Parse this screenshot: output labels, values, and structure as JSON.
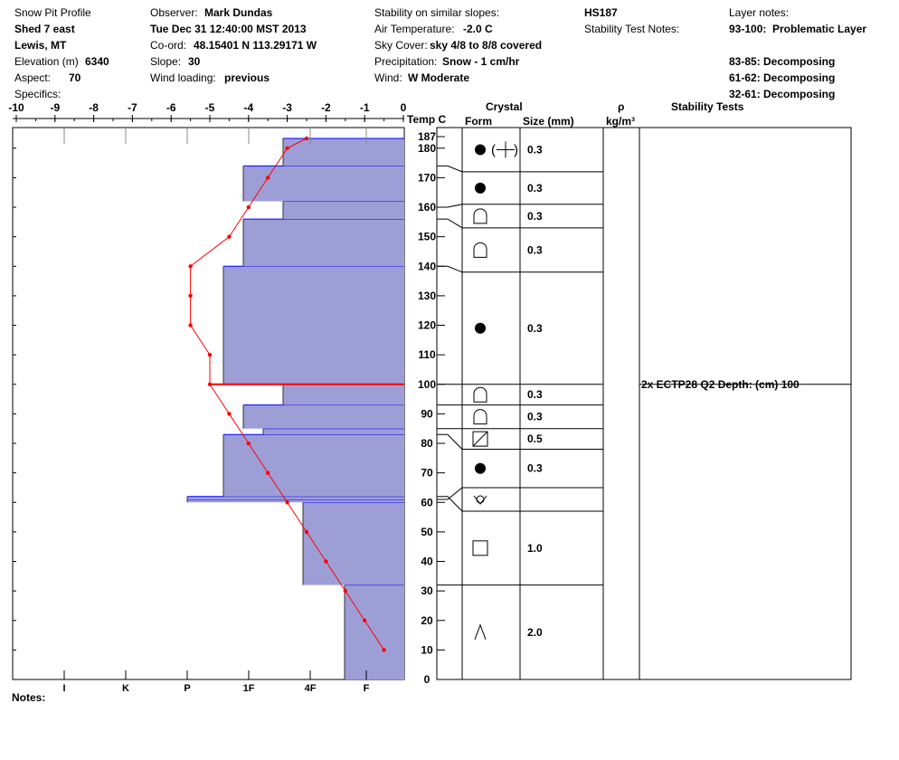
{
  "header": {
    "title": "Snow Pit Profile",
    "pit_name": "Shed 7 east",
    "location": "Lewis, MT",
    "elevation_label": "Elevation (m)",
    "elevation_value": "6340",
    "aspect_label": "Aspect:",
    "aspect_value": "70",
    "specifics_label": "Specifics:",
    "observer_label": "Observer:",
    "observer_value": "Mark Dundas",
    "datetime": "Tue Dec 31 12:40:00 MST 2013",
    "coord_label": "Co-ord:",
    "coord_value": "48.15401 N 113.29171 W",
    "slope_label": "Slope:",
    "slope_value": "30",
    "wind_loading_label": "Wind loading:",
    "wind_loading_value": "previous",
    "stability_similar_label": "Stability on similar slopes:",
    "air_temp_label": "Air Temperature:",
    "air_temp_value": "-2.0 C",
    "sky_cover_label": "Sky Cover:",
    "sky_cover_value": "sky 4/8 to 8/8 covered",
    "precip_label": "Precipitation:",
    "precip_value": "Snow - 1 cm/hr",
    "wind_label": "Wind:",
    "wind_value": "W Moderate",
    "hs": "HS187",
    "stability_notes_label": "Stability Test Notes:",
    "layer_notes_label": "Layer notes:",
    "layer_notes": [
      {
        "range": "93-100:",
        "text": "Problematic Layer"
      },
      {
        "range": "83-85:",
        "text": "Decomposing"
      },
      {
        "range": "61-62:",
        "text": "Decomposing"
      },
      {
        "range": "32-61:",
        "text": "Decomposing"
      }
    ],
    "notes_label": "Notes:"
  },
  "columns": {
    "temp": "Temp C",
    "crystal": "Crystal",
    "form": "Form",
    "size": "Size (mm)",
    "rho": "ρ",
    "density_unit": "kg/m³",
    "stability_tests": "Stability Tests"
  },
  "chart_data": {
    "type": "snow_profile",
    "snow_height_cm": 187,
    "height_axis": {
      "min": 0,
      "max": 187,
      "ticks": [
        0,
        10,
        20,
        30,
        40,
        50,
        60,
        70,
        80,
        90,
        100,
        110,
        120,
        130,
        140,
        150,
        160,
        170,
        180,
        187
      ]
    },
    "temp_axis": {
      "min": -10,
      "max": 0,
      "ticks": [
        -10,
        -9,
        -8,
        -7,
        -6,
        -5,
        -4,
        -3,
        -2,
        -1,
        0
      ]
    },
    "hardness_axis": {
      "labels": [
        "I",
        "K",
        "P",
        "1F",
        "4F",
        "F"
      ],
      "values": [
        9.4,
        7.7,
        6.0,
        4.3,
        2.6,
        1.05
      ]
    },
    "hardness_layers": [
      {
        "bottom": 0,
        "top": 32,
        "hardness": 1.65
      },
      {
        "bottom": 32,
        "top": 60,
        "hardness": 2.8
      },
      {
        "bottom": 60,
        "top": 61,
        "hardness": 6.0
      },
      {
        "bottom": 61,
        "top": 62,
        "hardness": 6.0
      },
      {
        "bottom": 62,
        "top": 83,
        "hardness": 5.0
      },
      {
        "bottom": 83,
        "top": 85,
        "hardness": 3.9
      },
      {
        "bottom": 85,
        "top": 93,
        "hardness": 4.45
      },
      {
        "bottom": 93,
        "top": 100,
        "hardness": 3.35
      },
      {
        "bottom": 100,
        "top": 140,
        "hardness": 5.0
      },
      {
        "bottom": 140,
        "top": 156,
        "hardness": 4.45
      },
      {
        "bottom": 156,
        "top": 162,
        "hardness": 3.35
      },
      {
        "bottom": 162,
        "top": 174,
        "hardness": 4.45
      },
      {
        "bottom": 174,
        "top": 187,
        "hardness": 3.35
      }
    ],
    "temperature_profile": [
      {
        "depth": 10,
        "temp": -0.5
      },
      {
        "depth": 20,
        "temp": -1.0
      },
      {
        "depth": 30,
        "temp": -1.5
      },
      {
        "depth": 40,
        "temp": -2.0
      },
      {
        "depth": 50,
        "temp": -2.5
      },
      {
        "depth": 60,
        "temp": -3.0
      },
      {
        "depth": 70,
        "temp": -3.5
      },
      {
        "depth": 80,
        "temp": -4.0
      },
      {
        "depth": 90,
        "temp": -4.5
      },
      {
        "depth": 100,
        "temp": -5.0
      },
      {
        "depth": 110,
        "temp": -5.0
      },
      {
        "depth": 120,
        "temp": -5.5
      },
      {
        "depth": 130,
        "temp": -5.5
      },
      {
        "depth": 140,
        "temp": -5.5
      },
      {
        "depth": 150,
        "temp": -4.5
      },
      {
        "depth": 160,
        "temp": -4.0
      },
      {
        "depth": 170,
        "temp": -3.5
      },
      {
        "depth": 180,
        "temp": -3.0
      },
      {
        "depth": 187,
        "temp": -2.5
      }
    ],
    "critical_layer_depth": 100,
    "crystal_layers": [
      {
        "bottom": 0,
        "top": 32,
        "form": "depth-hoar",
        "size": "2.0"
      },
      {
        "bottom": 32,
        "top": 57,
        "form": "faceted",
        "size": "1.0"
      },
      {
        "bottom": 57,
        "top": 65,
        "form": "surface-hoar",
        "size": ""
      },
      {
        "bottom": 65,
        "top": 78,
        "form": "rounded",
        "size": "0.3"
      },
      {
        "bottom": 78,
        "top": 85,
        "form": "mixed-facet",
        "size": "0.5"
      },
      {
        "bottom": 85,
        "top": 93,
        "form": "decomposing",
        "size": "0.3"
      },
      {
        "bottom": 93,
        "top": 100,
        "form": "decomposing",
        "size": "0.3"
      },
      {
        "bottom": 100,
        "top": 138,
        "form": "rounded",
        "size": "0.3"
      },
      {
        "bottom": 138,
        "top": 153,
        "form": "decomposing",
        "size": "0.3"
      },
      {
        "bottom": 153,
        "top": 161,
        "form": "decomposing",
        "size": "0.3"
      },
      {
        "bottom": 161,
        "top": 172,
        "form": "rounded",
        "size": "0.3"
      },
      {
        "bottom": 172,
        "top": 187,
        "form": "rounded-precip",
        "size": "0.3"
      }
    ],
    "stability_tests": [
      {
        "depth": 100,
        "text": "2x ECTP28 Q2 Depth: (cm) 100"
      }
    ],
    "colors": {
      "layer_fill": "#9e9ed6",
      "layer_edge": "#0000ff",
      "temp_line": "#ff0000"
    }
  }
}
